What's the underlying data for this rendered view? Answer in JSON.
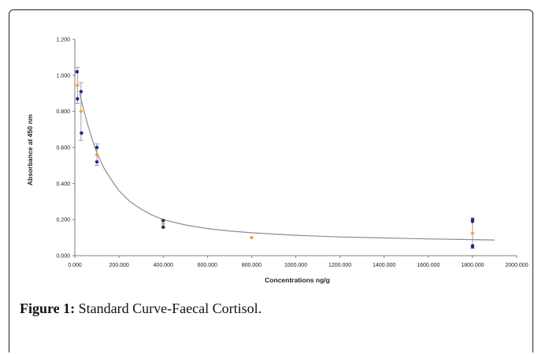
{
  "figure": {
    "caption_label": "Figure 1:",
    "caption_text": "Standard Curve-Faecal Cortisol."
  },
  "chart_data": {
    "type": "scatter",
    "title": "",
    "xlabel": "Concentrations ng/g",
    "ylabel": "Absorbance at 450 nm",
    "xlim": [
      0,
      2000
    ],
    "ylim": [
      0,
      1.2
    ],
    "xticks": [
      "0.000",
      "200.000",
      "400.000",
      "600.000",
      "800.000",
      "1000.000",
      "1200.000",
      "1400.000",
      "1600.000",
      "1800.000",
      "2000.000"
    ],
    "yticks": [
      "0.000",
      "0.200",
      "0.400",
      "0.600",
      "0.800",
      "1.000",
      "1.200"
    ],
    "grid": false,
    "colors": {
      "replicates": "#1a2a8c",
      "means": "#f39c2a",
      "curve": "#8c8c8c",
      "error_bars": "#8c8c8c"
    },
    "series": [
      {
        "kind": "replicates",
        "points": [
          [
            10,
            1.02
          ],
          [
            12,
            0.87
          ],
          [
            28,
            0.91
          ],
          [
            30,
            0.68
          ],
          [
            100,
            0.6
          ],
          [
            100,
            0.52
          ],
          [
            400,
            0.195
          ],
          [
            400,
            0.158
          ],
          [
            1800,
            0.2
          ],
          [
            1800,
            0.19
          ],
          [
            1800,
            0.055
          ],
          [
            1800,
            0.05
          ]
        ]
      },
      {
        "kind": "means",
        "points": [
          [
            12,
            0.945
          ],
          [
            28,
            0.8
          ],
          [
            100,
            0.56
          ],
          [
            400,
            0.177
          ],
          [
            800,
            0.1
          ],
          [
            1800,
            0.125
          ]
        ],
        "error": [
          0.1,
          0.16,
          0.06,
          0.02,
          0.0,
          0.085
        ]
      },
      {
        "kind": "fit",
        "points": [
          [
            22,
            0.9
          ],
          [
            40,
            0.81
          ],
          [
            60,
            0.72
          ],
          [
            80,
            0.64
          ],
          [
            100,
            0.57
          ],
          [
            130,
            0.49
          ],
          [
            160,
            0.43
          ],
          [
            200,
            0.36
          ],
          [
            250,
            0.3
          ],
          [
            300,
            0.258
          ],
          [
            350,
            0.225
          ],
          [
            400,
            0.2
          ],
          [
            500,
            0.17
          ],
          [
            600,
            0.15
          ],
          [
            700,
            0.137
          ],
          [
            800,
            0.127
          ],
          [
            1000,
            0.113
          ],
          [
            1200,
            0.104
          ],
          [
            1400,
            0.098
          ],
          [
            1600,
            0.093
          ],
          [
            1800,
            0.089
          ],
          [
            1900,
            0.087
          ]
        ]
      }
    ]
  }
}
